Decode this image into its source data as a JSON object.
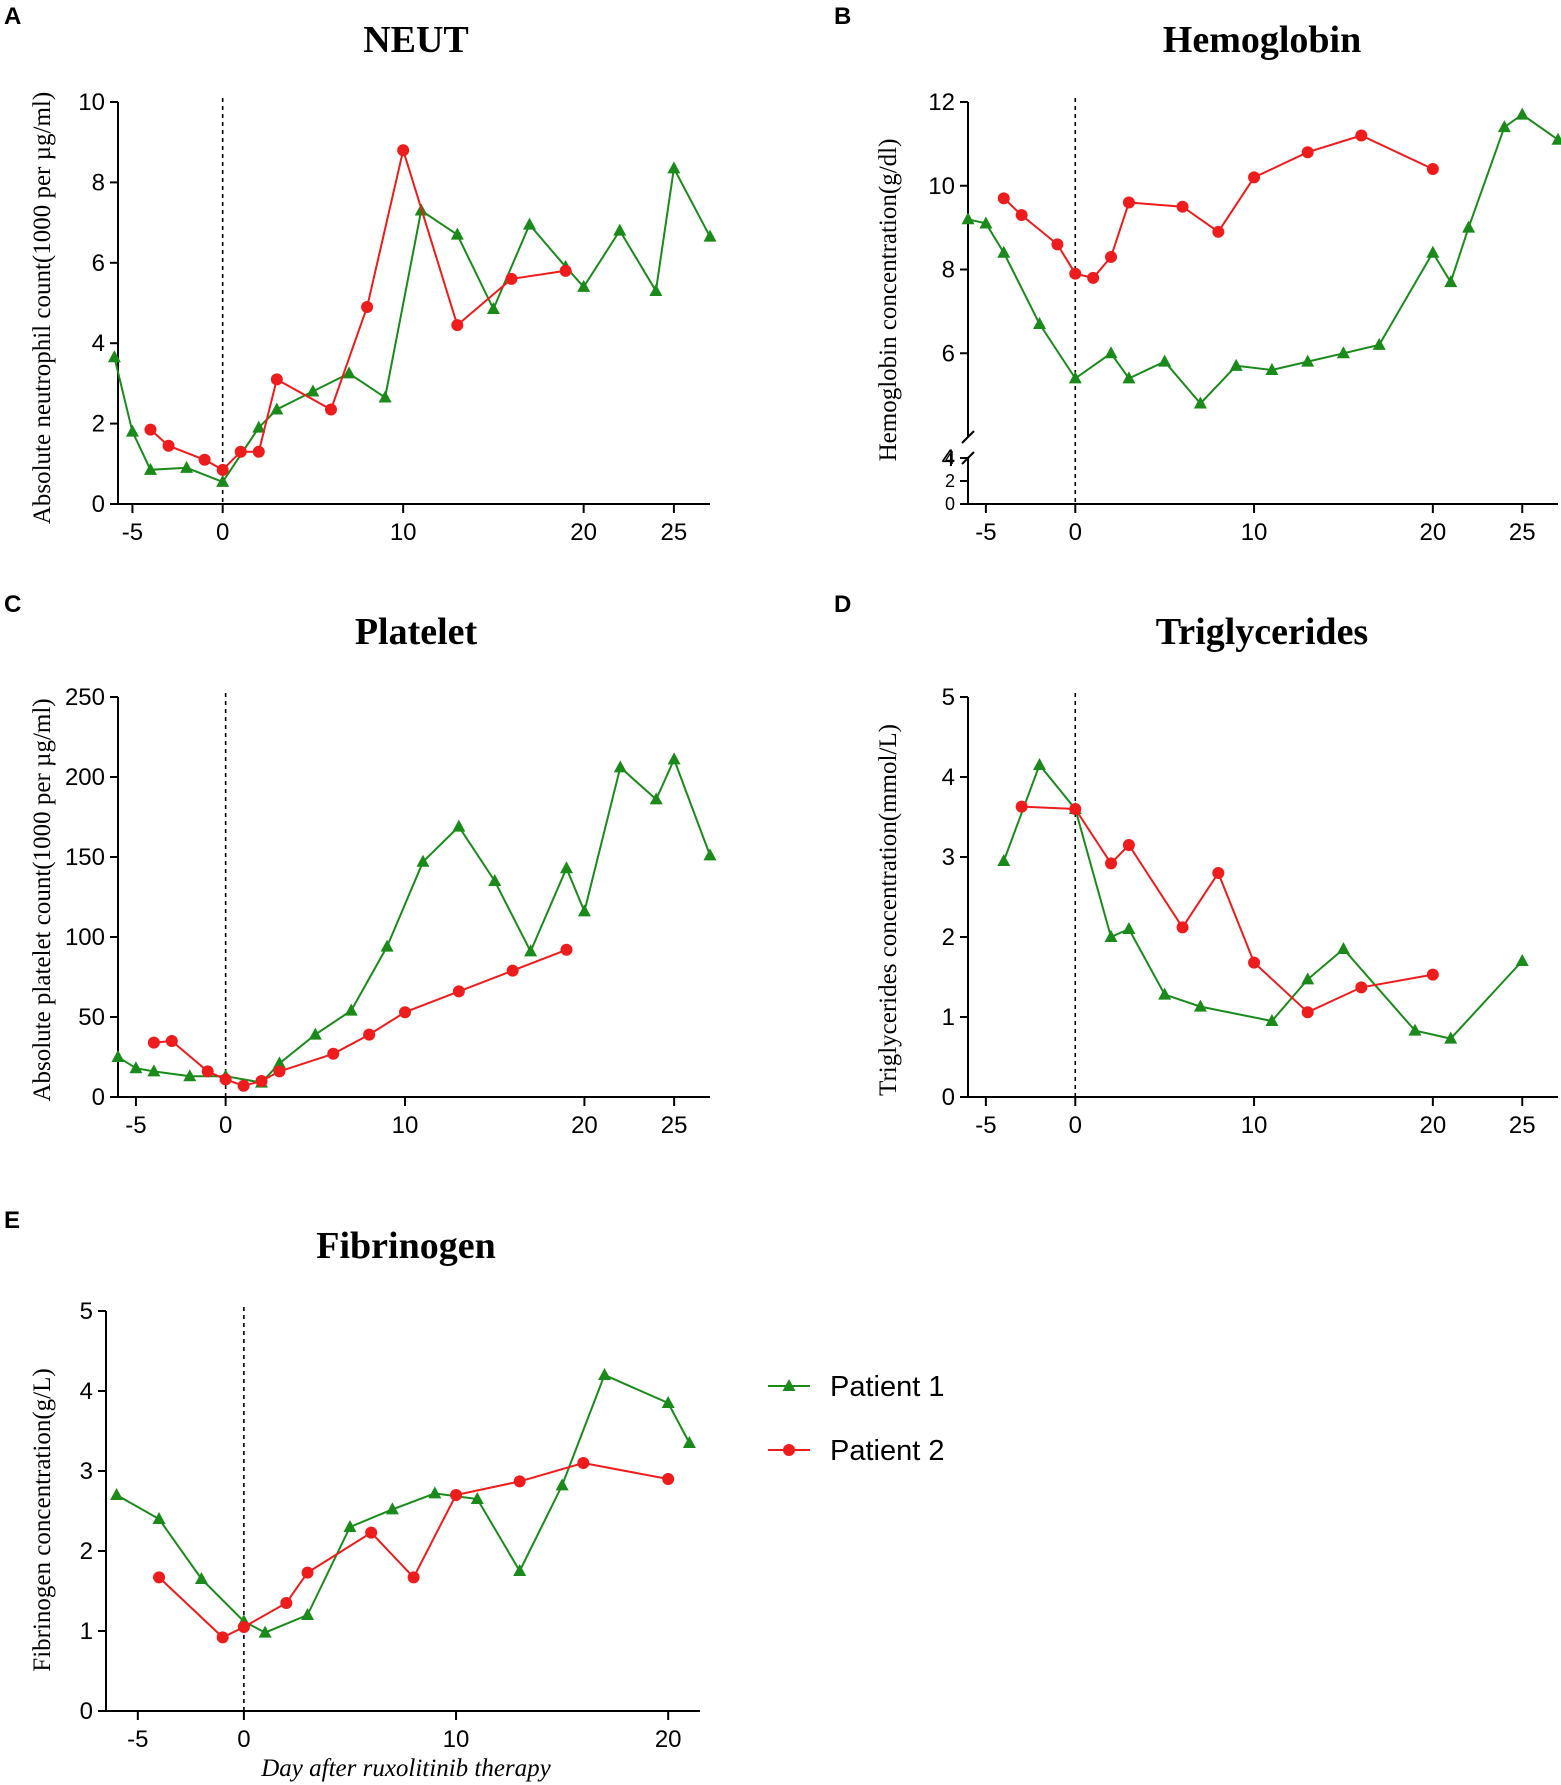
{
  "colors": {
    "patient1": "#1a8a1a",
    "patient2": "#ee1c1c",
    "axis": "#000000"
  },
  "legend": [
    {
      "key": "patient1",
      "label": "Patient 1",
      "marker": "triangle"
    },
    {
      "key": "patient2",
      "label": "Patient 2",
      "marker": "circle"
    }
  ],
  "chart_data": [
    {
      "id": "A",
      "letter": "A",
      "type": "line",
      "title": "NEUT",
      "ylabel": "Absolute neutrophil count(1000 per µg/ml)",
      "xlabel": "",
      "xlim": [
        -5.8,
        27
      ],
      "ylim": [
        0,
        10
      ],
      "xticks": [
        -5,
        0,
        10,
        20,
        25
      ],
      "yticks": [
        0,
        2,
        4,
        6,
        8,
        10
      ],
      "series": [
        {
          "name": "Patient 1",
          "key": "patient1",
          "x": [
            -6,
            -5,
            -4,
            -2,
            0,
            2,
            3,
            5,
            7,
            9,
            11,
            13,
            15,
            17,
            19,
            20,
            22,
            24,
            25,
            27
          ],
          "y": [
            3.65,
            1.8,
            0.85,
            0.9,
            0.55,
            1.9,
            2.35,
            2.8,
            3.25,
            2.65,
            7.3,
            6.7,
            4.85,
            6.95,
            5.9,
            5.4,
            6.8,
            5.3,
            8.35,
            6.65
          ]
        },
        {
          "name": "Patient 2",
          "key": "patient2",
          "x": [
            -4,
            -3,
            -1,
            0,
            1,
            2,
            3,
            6,
            8,
            10,
            13,
            16,
            19
          ],
          "y": [
            1.85,
            1.45,
            1.1,
            0.85,
            1.3,
            1.3,
            3.1,
            2.35,
            4.9,
            8.8,
            4.45,
            5.6,
            5.8
          ]
        }
      ]
    },
    {
      "id": "B",
      "letter": "B",
      "type": "line",
      "title": "Hemoglobin",
      "ylabel": "Hemoglobin concentration(g/dl)",
      "xlabel": "",
      "xlim": [
        -6,
        27
      ],
      "ylim": [
        0,
        12
      ],
      "axis_break": [
        4,
        4
      ],
      "xticks": [
        -5,
        0,
        10,
        20,
        25
      ],
      "yticks_lower": [
        0,
        2,
        4
      ],
      "yticks_upper": [
        4,
        6,
        8,
        10,
        12
      ],
      "series": [
        {
          "name": "Patient 1",
          "key": "patient1",
          "x": [
            -6,
            -5,
            -4,
            -2,
            0,
            2,
            3,
            5,
            7,
            9,
            11,
            13,
            15,
            17,
            20,
            21,
            22,
            24,
            25,
            27
          ],
          "y": [
            9.2,
            9.1,
            8.4,
            6.7,
            5.4,
            6.0,
            5.4,
            5.8,
            4.8,
            5.7,
            5.6,
            5.8,
            6.0,
            6.2,
            8.4,
            7.7,
            9.0,
            11.4,
            11.7,
            11.1
          ]
        },
        {
          "name": "Patient 2",
          "key": "patient2",
          "x": [
            -4,
            -3,
            -1,
            0,
            1,
            2,
            3,
            6,
            8,
            10,
            13,
            16,
            20
          ],
          "y": [
            9.7,
            9.3,
            8.6,
            7.9,
            7.8,
            8.3,
            9.6,
            9.5,
            8.9,
            10.2,
            10.8,
            11.2,
            10.4
          ]
        }
      ]
    },
    {
      "id": "C",
      "letter": "C",
      "type": "line",
      "title": "Platelet",
      "ylabel": "Absolute platelet count(1000 per µg/ml)",
      "xlabel": "",
      "xlim": [
        -6,
        27
      ],
      "ylim": [
        0,
        250
      ],
      "xticks": [
        -5,
        0,
        10,
        20,
        25
      ],
      "yticks": [
        0,
        50,
        100,
        150,
        200,
        250
      ],
      "series": [
        {
          "name": "Patient 1",
          "key": "patient1",
          "x": [
            -6,
            -5,
            -4,
            -2,
            0,
            2,
            3,
            5,
            7,
            9,
            11,
            13,
            15,
            17,
            19,
            20,
            22,
            24,
            25,
            27
          ],
          "y": [
            25,
            18,
            16,
            13,
            13,
            9,
            21,
            39,
            54,
            94,
            147,
            169,
            135,
            91,
            143,
            116,
            206,
            186,
            211,
            151
          ]
        },
        {
          "name": "Patient 2",
          "key": "patient2",
          "x": [
            -4,
            -3,
            -1,
            0,
            1,
            2,
            3,
            6,
            8,
            10,
            13,
            16,
            19
          ],
          "y": [
            34,
            35,
            16,
            11,
            7,
            10,
            16,
            27,
            39,
            53,
            66,
            79,
            92
          ]
        }
      ]
    },
    {
      "id": "D",
      "letter": "D",
      "type": "line",
      "title": "Triglycerides",
      "ylabel": "Triglycerides  concentration(mmol/L)",
      "xlabel": "",
      "xlim": [
        -6,
        27
      ],
      "ylim": [
        0,
        5
      ],
      "xticks": [
        -5,
        0,
        10,
        20,
        25
      ],
      "yticks": [
        0,
        1,
        2,
        3,
        4,
        5
      ],
      "series": [
        {
          "name": "Patient 1",
          "key": "patient1",
          "x": [
            -4,
            -2,
            0,
            2,
            3,
            5,
            7,
            11,
            13,
            15,
            19,
            21,
            25
          ],
          "y": [
            2.95,
            4.15,
            3.6,
            2.0,
            2.1,
            1.28,
            1.13,
            0.95,
            1.47,
            1.85,
            0.83,
            0.73,
            1.7
          ]
        },
        {
          "name": "Patient 2",
          "key": "patient2",
          "x": [
            -3,
            0,
            2,
            3,
            6,
            8,
            10,
            13,
            16,
            20
          ],
          "y": [
            3.63,
            3.6,
            2.92,
            3.15,
            2.12,
            2.8,
            1.68,
            1.06,
            1.37,
            1.53
          ]
        }
      ]
    },
    {
      "id": "E",
      "letter": "E",
      "type": "line",
      "title": "Fibrinogen",
      "ylabel": "Fibrinogen concentration(g/L)",
      "xlabel": "Day after  ruxolitinib therapy",
      "xlim": [
        -6.5,
        21.5
      ],
      "ylim": [
        0,
        5
      ],
      "xticks": [
        -5,
        0,
        10,
        20
      ],
      "yticks": [
        0,
        1,
        2,
        3,
        4,
        5
      ],
      "series": [
        {
          "name": "Patient 1",
          "key": "patient1",
          "x": [
            -6,
            -4,
            -2,
            0,
            1,
            3,
            5,
            7,
            9,
            11,
            13,
            15,
            17,
            20,
            21
          ],
          "y": [
            2.7,
            2.4,
            1.65,
            1.12,
            0.98,
            1.2,
            2.3,
            2.52,
            2.72,
            2.65,
            1.75,
            2.82,
            4.2,
            3.85,
            3.35
          ]
        },
        {
          "name": "Patient 2",
          "key": "patient2",
          "x": [
            -4,
            -1,
            0,
            2,
            3,
            6,
            8,
            10,
            13,
            16,
            20
          ],
          "y": [
            1.67,
            0.92,
            1.05,
            1.35,
            1.73,
            2.23,
            1.67,
            2.7,
            2.87,
            3.1,
            2.9
          ]
        }
      ]
    }
  ]
}
